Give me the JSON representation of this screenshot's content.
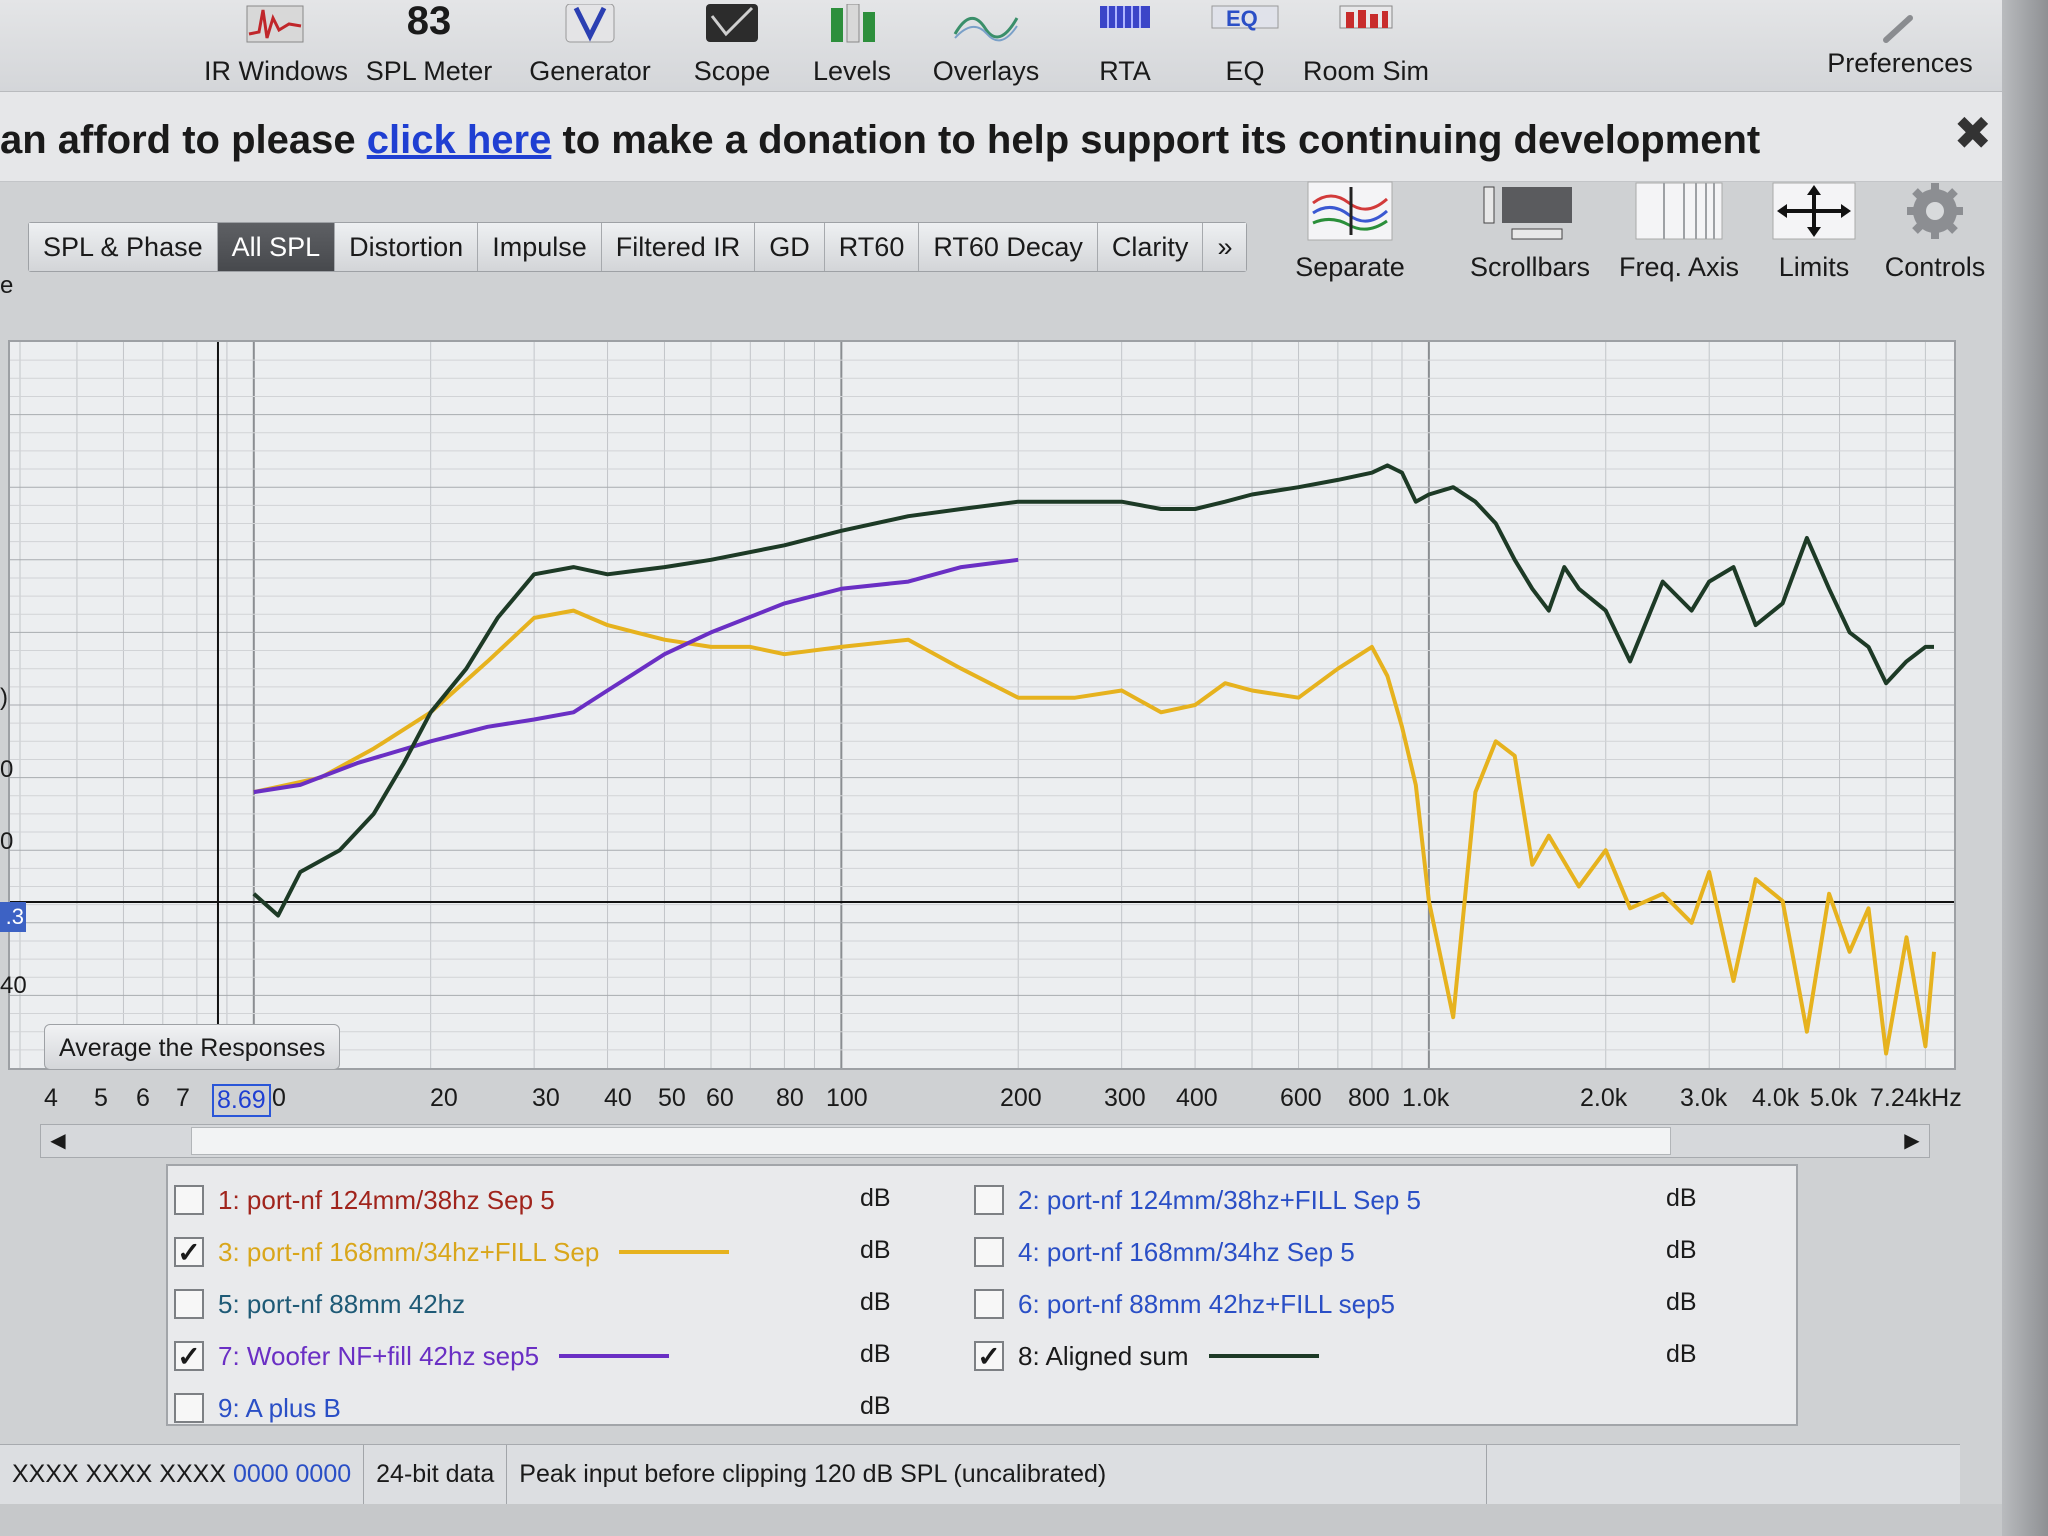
{
  "toolbar": {
    "items": [
      {
        "label": "IR Windows",
        "icon": "ir-windows-icon"
      },
      {
        "label": "SPL Meter",
        "icon": "spl-meter-icon",
        "value": "83"
      },
      {
        "label": "Generator",
        "icon": "generator-icon"
      },
      {
        "label": "Scope",
        "icon": "scope-icon"
      },
      {
        "label": "Levels",
        "icon": "levels-icon"
      },
      {
        "label": "Overlays",
        "icon": "overlays-icon"
      },
      {
        "label": "RTA",
        "icon": "rta-icon"
      },
      {
        "label": "EQ",
        "icon": "eq-icon"
      },
      {
        "label": "Room Sim",
        "icon": "room-sim-icon"
      },
      {
        "label": "Preferences",
        "icon": "wrench-icon"
      }
    ]
  },
  "banner": {
    "before": "an afford to please ",
    "link": "click here",
    "after": " to make a donation to help support its continuing development",
    "close": "✖"
  },
  "tabs": [
    "SPL & Phase",
    "All SPL",
    "Distortion",
    "Impulse",
    "Filtered IR",
    "GD",
    "RT60",
    "RT60 Decay",
    "Clarity",
    "»"
  ],
  "active_tab": "All SPL",
  "left_stub": "e",
  "graph_tools": [
    {
      "label": "Separate",
      "icon": "separate-icon"
    },
    {
      "label": "Scrollbars",
      "icon": "scrollbars-icon"
    },
    {
      "label": "Freq. Axis",
      "icon": "freq-axis-icon"
    },
    {
      "label": "Limits",
      "icon": "limits-icon"
    },
    {
      "label": "Controls",
      "icon": "gear-icon"
    }
  ],
  "y_axis": {
    "visible_labels": [
      ")",
      "0",
      "0",
      "40"
    ],
    "cursor_value": ".3"
  },
  "average_button": "Average the Responses",
  "x_axis": {
    "labels": [
      "4",
      "5",
      "6",
      "7",
      "8.69",
      "0",
      "20",
      "30",
      "40",
      "50",
      "60",
      "80",
      "100",
      "200",
      "300",
      "400",
      "600",
      "800",
      "1.0k",
      "2.0k",
      "3.0k",
      "4.0k",
      "5.0k",
      "7.24kHz"
    ],
    "cursor": "8.69"
  },
  "colors": {
    "yellow": "#e6b21e",
    "purple": "#6a2fc4",
    "dark": "#1d3a26",
    "active_tab": "#515357",
    "link": "#1f3fd2"
  },
  "legend": [
    {
      "index": "1",
      "name": "1: port-nf 124mm/38hz Sep 5",
      "checked": false,
      "unit": "dB",
      "text_color": "#a0241c",
      "swatch": null
    },
    {
      "index": "2",
      "name": "2: port-nf 124mm/38hz+FILL Sep 5",
      "checked": false,
      "unit": "dB",
      "text_color": "#2a4fc6",
      "swatch": null
    },
    {
      "index": "3",
      "name": "3: port-nf 168mm/34hz+FILL Sep",
      "checked": true,
      "unit": "dB",
      "text_color": "#d9a61a",
      "swatch": "#e6b21e"
    },
    {
      "index": "4",
      "name": "4: port-nf 168mm/34hz Sep 5",
      "checked": false,
      "unit": "dB",
      "text_color": "#2a4fc6",
      "swatch": null
    },
    {
      "index": "5",
      "name": "5: port-nf 88mm 42hz",
      "checked": false,
      "unit": "dB",
      "text_color": "#1e5a76",
      "swatch": null
    },
    {
      "index": "6",
      "name": "6: port-nf 88mm 42hz+FILL sep5",
      "checked": false,
      "unit": "dB",
      "text_color": "#2a4fc6",
      "swatch": null
    },
    {
      "index": "7",
      "name": "7: Woofer NF+fill 42hz sep5",
      "checked": true,
      "unit": "dB",
      "text_color": "#6a2fc4",
      "swatch": "#6a2fc4"
    },
    {
      "index": "8",
      "name": "8: Aligned sum",
      "checked": true,
      "unit": "dB",
      "text_color": "#1a1a1a",
      "swatch": "#1d3a26"
    },
    {
      "index": "9",
      "name": "9: A plus B",
      "checked": false,
      "unit": "dB",
      "text_color": "#2a4fc6",
      "swatch": null
    }
  ],
  "status": {
    "a": "XXXX  XXXX XXXX",
    "b": "0000 0000",
    "c": "24-bit data",
    "d": "Peak input before clipping 120 dB SPL (uncalibrated)"
  },
  "chart_data": {
    "type": "line",
    "xscale": "log",
    "xlim": [
      4,
      7240
    ],
    "xunit": "Hz",
    "series": [
      {
        "name": "3: port-nf 168mm/34hz+FILL Sep",
        "color": "#e6b21e",
        "x": [
          10,
          13,
          16,
          20,
          25,
          30,
          35,
          40,
          50,
          60,
          70,
          80,
          100,
          130,
          160,
          200,
          250,
          300,
          350,
          400,
          450,
          500,
          600,
          700,
          800,
          850,
          900,
          950,
          1000,
          1100,
          1200,
          1300,
          1400,
          1500,
          1600,
          1800,
          2000,
          2200,
          2500,
          2800,
          3000,
          3300,
          3600,
          4000,
          4400,
          4800,
          5200,
          5600,
          6000,
          6500,
          7000,
          7240
        ],
        "y": [
          0.62,
          0.6,
          0.56,
          0.51,
          0.44,
          0.38,
          0.37,
          0.39,
          0.41,
          0.42,
          0.42,
          0.43,
          0.42,
          0.41,
          0.45,
          0.49,
          0.49,
          0.48,
          0.51,
          0.5,
          0.47,
          0.48,
          0.49,
          0.45,
          0.42,
          0.46,
          0.53,
          0.61,
          0.77,
          0.93,
          0.62,
          0.55,
          0.57,
          0.72,
          0.68,
          0.75,
          0.7,
          0.78,
          0.76,
          0.8,
          0.73,
          0.88,
          0.74,
          0.77,
          0.95,
          0.76,
          0.84,
          0.78,
          0.98,
          0.82,
          0.97,
          0.84
        ]
      },
      {
        "name": "7: Woofer NF+fill 42hz sep5",
        "color": "#6a2fc4",
        "x": [
          10,
          12,
          15,
          20,
          25,
          30,
          35,
          40,
          50,
          60,
          80,
          100,
          130,
          160,
          200
        ],
        "y": [
          0.62,
          0.61,
          0.58,
          0.55,
          0.53,
          0.52,
          0.51,
          0.48,
          0.43,
          0.4,
          0.36,
          0.34,
          0.33,
          0.31,
          0.3
        ]
      },
      {
        "name": "8: Aligned sum",
        "color": "#1d3a26",
        "x": [
          10,
          11,
          12,
          14,
          16,
          18,
          20,
          23,
          26,
          30,
          35,
          40,
          50,
          60,
          80,
          100,
          130,
          160,
          200,
          250,
          300,
          350,
          400,
          450,
          500,
          600,
          700,
          800,
          850,
          900,
          950,
          1000,
          1100,
          1200,
          1300,
          1400,
          1500,
          1600,
          1700,
          1800,
          2000,
          2200,
          2500,
          2800,
          3000,
          3300,
          3600,
          4000,
          4400,
          4800,
          5200,
          5600,
          6000,
          6500,
          7000,
          7240
        ],
        "y": [
          0.76,
          0.79,
          0.73,
          0.7,
          0.65,
          0.58,
          0.51,
          0.45,
          0.38,
          0.32,
          0.31,
          0.32,
          0.31,
          0.3,
          0.28,
          0.26,
          0.24,
          0.23,
          0.22,
          0.22,
          0.22,
          0.23,
          0.23,
          0.22,
          0.21,
          0.2,
          0.19,
          0.18,
          0.17,
          0.18,
          0.22,
          0.21,
          0.2,
          0.22,
          0.25,
          0.3,
          0.34,
          0.37,
          0.31,
          0.34,
          0.37,
          0.44,
          0.33,
          0.37,
          0.33,
          0.31,
          0.39,
          0.36,
          0.27,
          0.34,
          0.4,
          0.42,
          0.47,
          0.44,
          0.42,
          0.42
        ]
      }
    ]
  }
}
